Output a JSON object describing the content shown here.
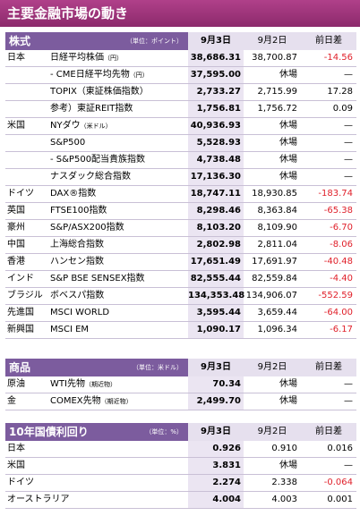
{
  "title": "主要金融市場の動き",
  "sections": [
    {
      "label": "株式",
      "unit": "（単位：ポイント）",
      "columns": [
        "9月3日",
        "9月2日",
        "前日差"
      ],
      "rows": [
        {
          "region": "日本",
          "name": "日経平均株価",
          "unit": "（円）",
          "values": [
            "38,686.31",
            "38,700.87",
            "-14.56"
          ]
        },
        {
          "name": "- CME日経平均先物",
          "unit": "（円）",
          "values": [
            "37,595.00",
            "休場",
            "—"
          ]
        },
        {
          "name": "TOPIX（東証株価指数）",
          "values": [
            "2,733.27",
            "2,715.99",
            "17.28"
          ]
        },
        {
          "name": "参考）東証REIT指数",
          "values": [
            "1,756.81",
            "1,756.72",
            "0.09"
          ]
        },
        {
          "region": "米国",
          "name": "NYダウ",
          "unit": "（米ドル）",
          "values": [
            "40,936.93",
            "休場",
            "—"
          ]
        },
        {
          "name": "S&P500",
          "values": [
            "5,528.93",
            "休場",
            "—"
          ]
        },
        {
          "name": "- S&P500配当貴族指数",
          "values": [
            "4,738.48",
            "休場",
            "—"
          ]
        },
        {
          "name": "ナスダック総合指数",
          "values": [
            "17,136.30",
            "休場",
            "—"
          ]
        },
        {
          "region": "ドイツ",
          "name": "DAX®指数",
          "values": [
            "18,747.11",
            "18,930.85",
            "-183.74"
          ]
        },
        {
          "region": "英国",
          "name": "FTSE100指数",
          "values": [
            "8,298.46",
            "8,363.84",
            "-65.38"
          ]
        },
        {
          "region": "豪州",
          "name": "S&P/ASX200指数",
          "values": [
            "8,103.20",
            "8,109.90",
            "-6.70"
          ]
        },
        {
          "region": "中国",
          "name": "上海総合指数",
          "values": [
            "2,802.98",
            "2,811.04",
            "-8.06"
          ]
        },
        {
          "region": "香港",
          "name": "ハンセン指数",
          "values": [
            "17,651.49",
            "17,691.97",
            "-40.48"
          ]
        },
        {
          "region": "インド",
          "name": "S&P BSE SENSEX指数",
          "values": [
            "82,555.44",
            "82,559.84",
            "-4.40"
          ]
        },
        {
          "region": "ブラジル",
          "name": "ボベスパ指数",
          "values": [
            "134,353.48",
            "134,906.07",
            "-552.59"
          ]
        },
        {
          "region": "先進国",
          "name": "MSCI WORLD",
          "values": [
            "3,595.44",
            "3,659.44",
            "-64.00"
          ]
        },
        {
          "region": "新興国",
          "name": "MSCI EM",
          "values": [
            "1,090.17",
            "1,096.34",
            "-6.17"
          ]
        }
      ]
    },
    {
      "label": "商品",
      "unit": "（単位：米ドル）",
      "columns": [
        "9月3日",
        "9月2日",
        "前日差"
      ],
      "rows": [
        {
          "region": "原油",
          "name": "WTI先物",
          "unit": "（期近物）",
          "values": [
            "70.34",
            "休場",
            "—"
          ]
        },
        {
          "region": "金",
          "name": "COMEX先物",
          "unit": "（期近物）",
          "values": [
            "2,499.70",
            "休場",
            "—"
          ]
        }
      ]
    },
    {
      "label": "10年国債利回り",
      "unit": "（単位：%）",
      "columns": [
        "9月3日",
        "9月2日",
        "前日差"
      ],
      "rows": [
        {
          "region": "日本",
          "values": [
            "0.926",
            "0.910",
            "0.016"
          ]
        },
        {
          "region": "米国",
          "values": [
            "3.831",
            "休場",
            "—"
          ]
        },
        {
          "region": "ドイツ",
          "values": [
            "2.274",
            "2.338",
            "-0.064"
          ]
        },
        {
          "region": "オーストラリア",
          "values": [
            "4.004",
            "4.003",
            "0.001"
          ]
        }
      ]
    }
  ]
}
